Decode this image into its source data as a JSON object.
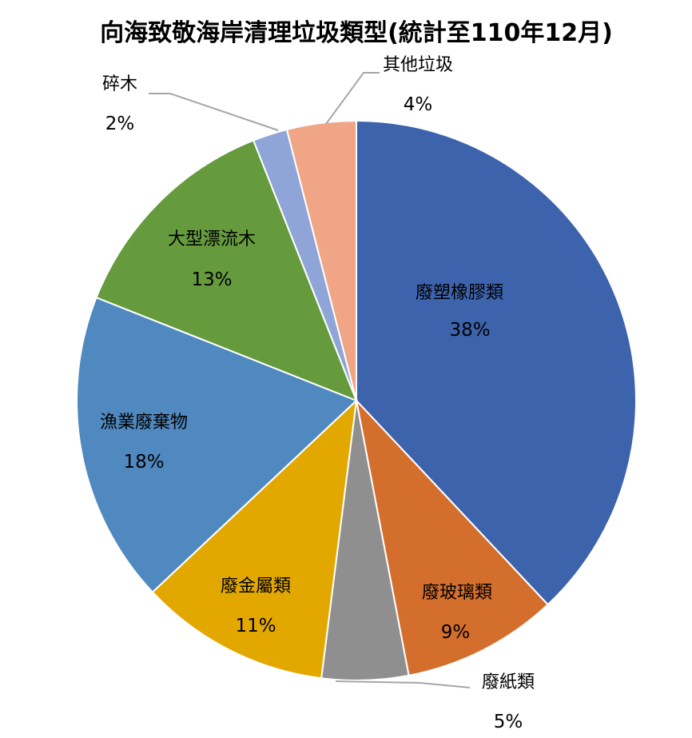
{
  "chart_data": {
    "type": "pie",
    "title": "向海致敬海岸清理垃圾類型(統計至110年12月)",
    "start_angle_deg": 0,
    "direction": "clockwise",
    "slices": [
      {
        "label": "廢塑橡膠類",
        "value": 38,
        "value_label": "38%",
        "color": "#3d63ad"
      },
      {
        "label": "廢玻璃類",
        "value": 9,
        "value_label": "9%",
        "color": "#d46e2c"
      },
      {
        "label": "廢紙類",
        "value": 5,
        "value_label": "5%",
        "color": "#8f8f8f"
      },
      {
        "label": "廢金屬類",
        "value": 11,
        "value_label": "11%",
        "color": "#e3a800"
      },
      {
        "label": "漁業廢棄物",
        "value": 18,
        "value_label": "18%",
        "color": "#5089bf"
      },
      {
        "label": "大型漂流木",
        "value": 13,
        "value_label": "13%",
        "color": "#659a3d"
      },
      {
        "label": "碎木",
        "value": 2,
        "value_label": "2%",
        "color": "#8fa5d8"
      },
      {
        "label": "其他垃圾",
        "value": 4,
        "value_label": "4%",
        "color": "#f0a686"
      }
    ],
    "legend": "none"
  }
}
